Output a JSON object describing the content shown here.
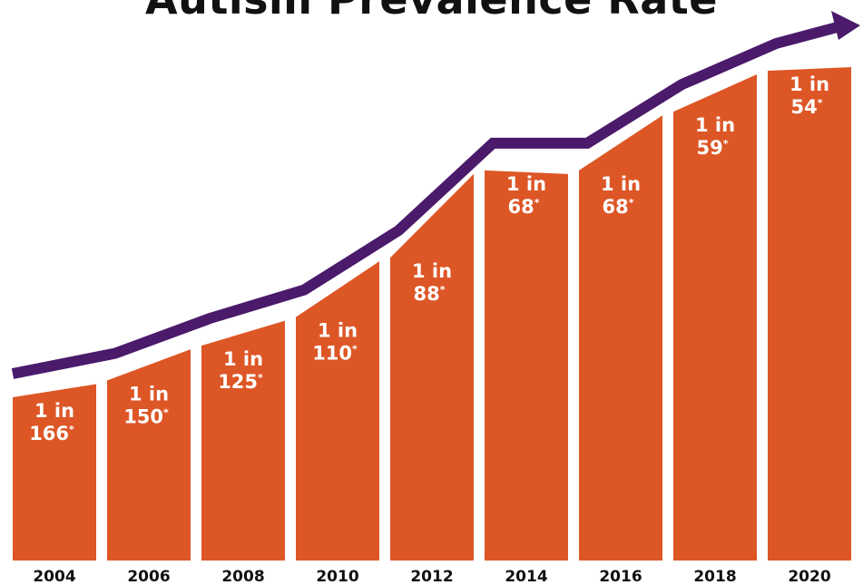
{
  "chart_data": {
    "type": "bar",
    "title": "Autism Prevalence Rate",
    "categories": [
      "2004",
      "2006",
      "2008",
      "2010",
      "2012",
      "2014",
      "2016",
      "2018",
      "2020"
    ],
    "values": [
      166,
      150,
      125,
      110,
      88,
      68,
      68,
      59,
      54
    ],
    "labels": [
      {
        "line1": "1 in",
        "line2": "166",
        "mark": "*"
      },
      {
        "line1": "1 in",
        "line2": "150",
        "mark": "*"
      },
      {
        "line1": "1 in",
        "line2": "125",
        "mark": "*"
      },
      {
        "line1": "1 in",
        "line2": "110",
        "mark": "*"
      },
      {
        "line1": "1 in",
        "line2": "88",
        "mark": "*"
      },
      {
        "line1": "1 in",
        "line2": "68",
        "mark": "*"
      },
      {
        "line1": "1 in",
        "line2": "68",
        "mark": "*"
      },
      {
        "line1": "1 in",
        "line2": "59",
        "mark": "*"
      },
      {
        "line1": "1 in",
        "line2": "54",
        "mark": "*"
      }
    ],
    "xlabel": "",
    "ylabel": "",
    "legend": "none",
    "grid": false
  },
  "colors": {
    "bar": "#DD5626",
    "arrow": "#4B1A6B",
    "bar_text": "#FFFFFF",
    "axis_text": "#111111"
  }
}
